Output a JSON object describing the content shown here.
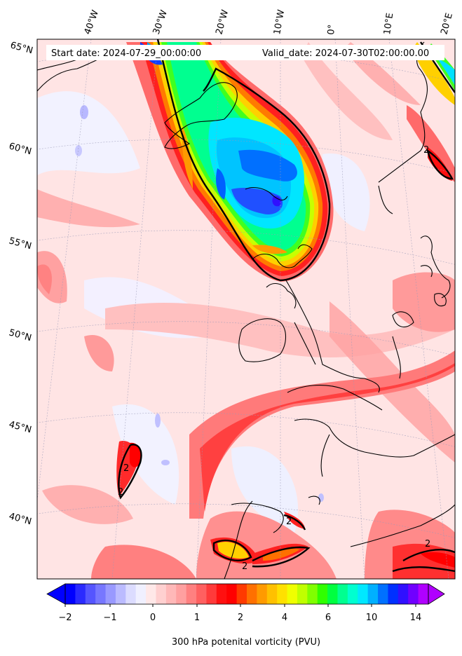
{
  "header": {
    "start_date": "Start date: 2024-07-29_00:00:00",
    "valid_date": "Valid_date: 2024-07-30T02:00:00.00"
  },
  "lon_labels": [
    "40°W",
    "30°W",
    "20°W",
    "10°W",
    "0°",
    "10°E",
    "20°E"
  ],
  "lat_labels": [
    "65°N",
    "60°N",
    "55°N",
    "50°N",
    "45°N",
    "40°N"
  ],
  "contour_label": "2",
  "colorbar": {
    "ticks": [
      "−2",
      "−1",
      "0",
      "1",
      "2",
      "4",
      "6",
      "10",
      "14"
    ],
    "label": "300 hPa potenital vorticity (PVU)",
    "colors": [
      "#0000ff",
      "#2a2aff",
      "#5555ff",
      "#7777ff",
      "#9999ff",
      "#bbbbff",
      "#dcdcff",
      "#f0f0ff",
      "#ffe8e8",
      "#ffd0d0",
      "#ffb8b8",
      "#ffa0a0",
      "#ff8080",
      "#ff6060",
      "#ff3a3a",
      "#ff1010",
      "#ff0000",
      "#ff3a00",
      "#ff7000",
      "#ff9a00",
      "#ffc000",
      "#ffe000",
      "#f0ff00",
      "#c0ff00",
      "#80ff00",
      "#30ff00",
      "#00ff40",
      "#00ff90",
      "#00ffd0",
      "#00e8ff",
      "#00b0ff",
      "#0070ff",
      "#0030ff",
      "#3010ff",
      "#7000ff",
      "#b000ff"
    ]
  }
}
